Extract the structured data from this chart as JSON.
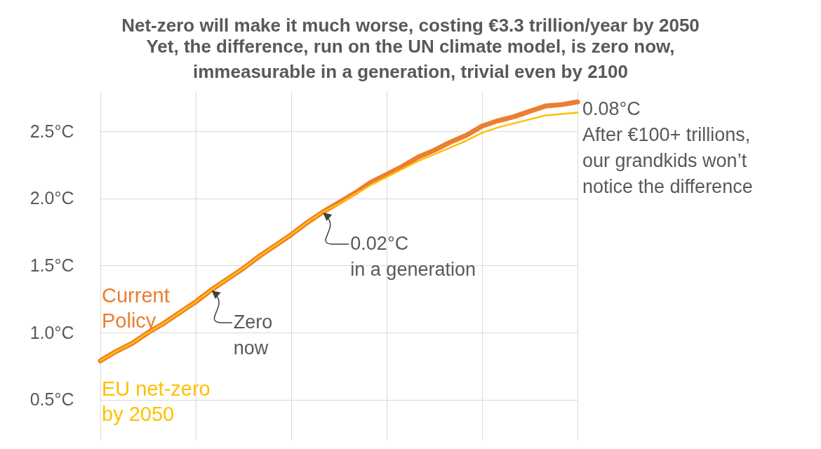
{
  "chart_data": {
    "type": "line",
    "title": "Net-zero will make it much worse, costing €3.3 trillion/year by 2050",
    "subtitle": "Yet, the difference, run on the UN climate model, is zero now,\nimmeasurable in a generation, trivial even by 2100",
    "categories": [
      null,
      null,
      null,
      null,
      null,
      null,
      null,
      null,
      null,
      null,
      null,
      null,
      null,
      null,
      null,
      null,
      null,
      null,
      null,
      null,
      null,
      null,
      null,
      null,
      null,
      null,
      null,
      null,
      null,
      null,
      null
    ],
    "series": [
      {
        "name": "Current Policy",
        "color": "#ed7d31",
        "values": [
          0.79,
          0.86,
          0.92,
          1.0,
          1.07,
          1.15,
          1.23,
          1.32,
          1.4,
          1.48,
          1.57,
          1.65,
          1.73,
          1.82,
          1.9,
          1.97,
          2.04,
          2.12,
          2.18,
          2.24,
          2.31,
          2.36,
          2.42,
          2.47,
          2.54,
          2.58,
          2.61,
          2.65,
          2.69,
          2.7,
          2.72
        ]
      },
      {
        "name": "EU net-zero by 2050",
        "color": "#ffc000",
        "values": [
          0.79,
          0.86,
          0.92,
          1.0,
          1.07,
          1.15,
          1.23,
          1.32,
          1.4,
          1.48,
          1.57,
          1.65,
          1.73,
          1.82,
          1.9,
          1.96,
          2.03,
          2.1,
          2.16,
          2.22,
          2.28,
          2.33,
          2.38,
          2.43,
          2.49,
          2.53,
          2.56,
          2.59,
          2.62,
          2.63,
          2.64
        ]
      }
    ],
    "ylim": [
      0.2,
      2.8
    ],
    "yticks": [
      {
        "value": 0.5,
        "label": "0.5°C"
      },
      {
        "value": 1.0,
        "label": "1.0°C"
      },
      {
        "value": 1.5,
        "label": "1.5°C"
      },
      {
        "value": 2.0,
        "label": "2.0°C"
      },
      {
        "value": 2.5,
        "label": "2.5°C"
      }
    ],
    "annotations": [
      "Zero\nnow",
      "0.02°C\nin a generation",
      "0.08°C\nAfter €100+ trillions,\nour grandkids won’t\nnotice the difference"
    ],
    "grid": true,
    "tick_labels": "y"
  }
}
